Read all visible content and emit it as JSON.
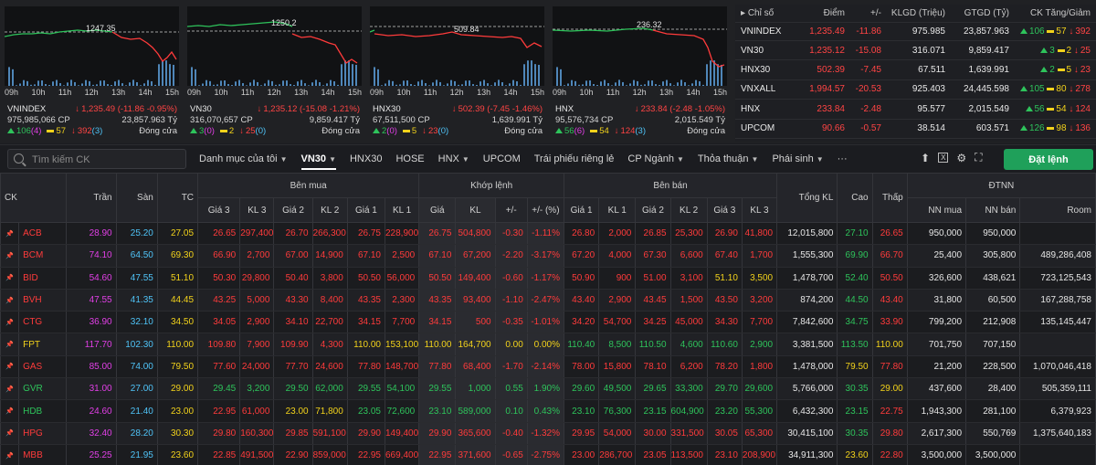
{
  "colors": {
    "up": "#2ec35b",
    "down": "#ff3b3b",
    "ref": "#f2d21b",
    "ceil": "#e13fe6",
    "floor": "#4fc3f7",
    "accent_button": "#1fa05a"
  },
  "hours": [
    "09h",
    "10h",
    "11h",
    "12h",
    "13h",
    "14h",
    "15h"
  ],
  "index_panels": [
    {
      "name": "VNINDEX",
      "peak": "1247.35",
      "value": "1,235.49 (-11.86 -0.95%)",
      "volume": "975,985,066 CP",
      "amount": "23,857.963 Tỷ",
      "up": "106",
      "up_ceil": "(4)",
      "ref": "57",
      "down": "392",
      "down_floor": "(3)",
      "status": "Đóng cửa"
    },
    {
      "name": "VN30",
      "peak": "1250.2",
      "value": "1,235.12 (-15.08 -1.21%)",
      "volume": "316,070,657 CP",
      "amount": "9,859.417 Tỷ",
      "up": "3",
      "up_ceil": "(0)",
      "ref": "2",
      "down": "25",
      "down_floor": "(0)",
      "status": "Đóng cửa"
    },
    {
      "name": "HNX30",
      "peak": "509.84",
      "value": "502.39 (-7.45 -1.46%)",
      "volume": "67,511,500 CP",
      "amount": "1,639.991 Tỷ",
      "up": "2",
      "up_ceil": "(0)",
      "ref": "5",
      "down": "23",
      "down_floor": "(0)",
      "status": "Đóng cửa"
    },
    {
      "name": "HNX",
      "peak": "236.32",
      "value": "233.84 (-2.48 -1.05%)",
      "volume": "95,576,734 CP",
      "amount": "2,015.549 Tỷ",
      "up": "56",
      "up_ceil": "(6)",
      "ref": "54",
      "down": "124",
      "down_floor": "(3)",
      "status": "Đóng cửa"
    }
  ],
  "index_table": {
    "headers": [
      "Chỉ số",
      "Điểm",
      "+/-",
      "KLGD (Triệu)",
      "GTGD (Tỷ)",
      "CK Tăng/Giảm"
    ],
    "rows": [
      {
        "name": "VNINDEX",
        "point": "1,235.49",
        "change": "-11.86",
        "vol": "975.985",
        "val": "23,857.963",
        "up": "106",
        "ref": "57",
        "down": "392"
      },
      {
        "name": "VN30",
        "point": "1,235.12",
        "change": "-15.08",
        "vol": "316.071",
        "val": "9,859.417",
        "up": "3",
        "ref": "2",
        "down": "25"
      },
      {
        "name": "HNX30",
        "point": "502.39",
        "change": "-7.45",
        "vol": "67.511",
        "val": "1,639.991",
        "up": "2",
        "ref": "5",
        "down": "23"
      },
      {
        "name": "VNXALL",
        "point": "1,994.57",
        "change": "-20.53",
        "vol": "925.403",
        "val": "24,445.598",
        "up": "105",
        "ref": "80",
        "down": "278"
      },
      {
        "name": "HNX",
        "point": "233.84",
        "change": "-2.48",
        "vol": "95.577",
        "val": "2,015.549",
        "up": "56",
        "ref": "54",
        "down": "124"
      },
      {
        "name": "UPCOM",
        "point": "90.66",
        "change": "-0.57",
        "vol": "38.514",
        "val": "603.571",
        "up": "126",
        "ref": "98",
        "down": "136"
      }
    ]
  },
  "toolbar": {
    "search_placeholder": "Tìm kiếm CK",
    "tabs": [
      "Danh mục của tôi",
      "VN30",
      "HNX30",
      "HOSE",
      "HNX",
      "UPCOM",
      "Trái phiếu riêng lẻ",
      "CP Ngành",
      "Thỏa thuận",
      "Phái sinh",
      "···"
    ],
    "login": "Đặt lệnh"
  },
  "board": {
    "group_headers": [
      "Bên mua",
      "Khớp lệnh",
      "Bên bán",
      "ĐTNN"
    ],
    "headers": [
      "CK",
      "Trần",
      "Sàn",
      "TC",
      "Giá 3",
      "KL 3",
      "Giá 2",
      "KL 2",
      "Giá 1",
      "KL 1",
      "Giá",
      "KL",
      "+/-",
      "+/- (%)",
      "Giá 1",
      "KL 1",
      "Giá 2",
      "KL 2",
      "Giá 3",
      "KL 3",
      "Tổng KL",
      "Cao",
      "Thấp",
      "NN mua",
      "NN bán",
      "Room"
    ],
    "rows": [
      [
        "ACB",
        "28.90",
        "25.20",
        "27.05",
        "26.65",
        "297,400",
        "26.70",
        "266,300",
        "26.75",
        "228,900",
        "26.75",
        "504,800",
        "-0.30",
        "-1.11%",
        "26.80",
        "2,000",
        "26.85",
        "25,300",
        "26.90",
        "41,800",
        "12,015,800",
        "27.10",
        "26.65",
        "950,000",
        "950,000",
        ""
      ],
      [
        "BCM",
        "74.10",
        "64.50",
        "69.30",
        "66.90",
        "2,700",
        "67.00",
        "14,900",
        "67.10",
        "2,500",
        "67.10",
        "67,200",
        "-2.20",
        "-3.17%",
        "67.20",
        "4,000",
        "67.30",
        "6,600",
        "67.40",
        "1,700",
        "1,555,300",
        "69.90",
        "66.70",
        "25,400",
        "305,800",
        "489,286,408"
      ],
      [
        "BID",
        "54.60",
        "47.55",
        "51.10",
        "50.30",
        "29,800",
        "50.40",
        "3,800",
        "50.50",
        "56,000",
        "50.50",
        "149,400",
        "-0.60",
        "-1.17%",
        "50.90",
        "900",
        "51.00",
        "3,100",
        "51.10",
        "3,500",
        "1,478,700",
        "52.40",
        "50.50",
        "326,600",
        "438,621",
        "723,125,543"
      ],
      [
        "BVH",
        "47.55",
        "41.35",
        "44.45",
        "43.25",
        "5,000",
        "43.30",
        "8,400",
        "43.35",
        "2,300",
        "43.35",
        "93,400",
        "-1.10",
        "-2.47%",
        "43.40",
        "2,900",
        "43.45",
        "1,500",
        "43.50",
        "3,200",
        "874,200",
        "44.50",
        "43.40",
        "31,800",
        "60,500",
        "167,288,758"
      ],
      [
        "CTG",
        "36.90",
        "32.10",
        "34.50",
        "34.05",
        "2,900",
        "34.10",
        "22,700",
        "34.15",
        "7,700",
        "34.15",
        "500",
        "-0.35",
        "-1.01%",
        "34.20",
        "54,700",
        "34.25",
        "45,000",
        "34.30",
        "7,700",
        "7,842,600",
        "34.75",
        "33.90",
        "799,200",
        "212,908",
        "135,145,447"
      ],
      [
        "FPT",
        "117.70",
        "102.30",
        "110.00",
        "109.80",
        "7,900",
        "109.90",
        "4,300",
        "110.00",
        "153,100",
        "110.00",
        "164,700",
        "0.00",
        "0.00%",
        "110.40",
        "8,500",
        "110.50",
        "4,600",
        "110.60",
        "2,900",
        "3,381,500",
        "113.50",
        "110.00",
        "701,750",
        "707,150",
        ""
      ],
      [
        "GAS",
        "85.00",
        "74.00",
        "79.50",
        "77.60",
        "24,000",
        "77.70",
        "24,600",
        "77.80",
        "148,700",
        "77.80",
        "68,400",
        "-1.70",
        "-2.14%",
        "78.00",
        "15,800",
        "78.10",
        "6,200",
        "78.20",
        "1,800",
        "1,478,000",
        "79.50",
        "77.80",
        "21,200",
        "228,500",
        "1,070,046,418"
      ],
      [
        "GVR",
        "31.00",
        "27.00",
        "29.00",
        "29.45",
        "3,200",
        "29.50",
        "62,000",
        "29.55",
        "54,100",
        "29.55",
        "1,000",
        "0.55",
        "1.90%",
        "29.60",
        "49,500",
        "29.65",
        "33,300",
        "29.70",
        "29,600",
        "5,766,000",
        "30.35",
        "29.00",
        "437,600",
        "28,400",
        "505,359,111"
      ],
      [
        "HDB",
        "24.60",
        "21.40",
        "23.00",
        "22.95",
        "61,000",
        "23.00",
        "71,800",
        "23.05",
        "72,600",
        "23.10",
        "589,000",
        "0.10",
        "0.43%",
        "23.10",
        "76,300",
        "23.15",
        "604,900",
        "23.20",
        "55,300",
        "6,432,300",
        "23.15",
        "22.75",
        "1,943,300",
        "281,100",
        "6,379,923"
      ],
      [
        "HPG",
        "32.40",
        "28.20",
        "30.30",
        "29.80",
        "160,300",
        "29.85",
        "591,100",
        "29.90",
        "149,400",
        "29.90",
        "365,600",
        "-0.40",
        "-1.32%",
        "29.95",
        "54,000",
        "30.00",
        "331,500",
        "30.05",
        "65,300",
        "30,415,100",
        "30.35",
        "29.80",
        "2,617,300",
        "550,769",
        "1,375,640,183"
      ],
      [
        "MBB",
        "25.25",
        "21.95",
        "23.60",
        "22.85",
        "491,500",
        "22.90",
        "859,000",
        "22.95",
        "669,400",
        "22.95",
        "371,600",
        "-0.65",
        "-2.75%",
        "23.00",
        "286,700",
        "23.05",
        "113,500",
        "23.10",
        "208,900",
        "34,911,300",
        "23.60",
        "22.80",
        "3,500,000",
        "3,500,000",
        ""
      ]
    ]
  }
}
